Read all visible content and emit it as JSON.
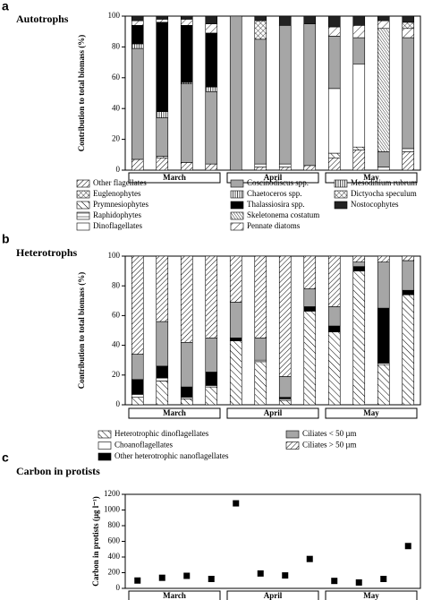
{
  "chart_data": [
    {
      "type": "bar",
      "stacked": true,
      "panel_label": "a",
      "title": "Autotrophs",
      "ylabel": "Contribution to total biomass (%)",
      "ylim": [
        0,
        100
      ],
      "yticks": [
        0,
        20,
        40,
        60,
        80,
        100
      ],
      "groups": [
        "March",
        "April",
        "May"
      ],
      "categories": [
        null,
        null,
        null,
        null,
        null,
        null,
        null,
        null,
        null,
        null,
        null,
        null
      ],
      "series": [
        {
          "name": "Other flagellates",
          "color": "#ffffff",
          "pattern": "diagonal",
          "values": [
            7,
            8,
            5,
            4,
            0,
            2,
            2,
            3,
            8,
            13,
            0,
            12
          ]
        },
        {
          "name": "Euglenophytes",
          "color": "#ffffff",
          "pattern": "crosshatch",
          "values": [
            0,
            0,
            0,
            0,
            0,
            0,
            0,
            0,
            0,
            0,
            0,
            0
          ]
        },
        {
          "name": "Prymnesiophytes",
          "color": "#ffffff",
          "pattern": "back-diagonal",
          "values": [
            0,
            1,
            0,
            0,
            0,
            0,
            0,
            0,
            3,
            2,
            0,
            0
          ]
        },
        {
          "name": "Raphidophytes",
          "color": "#ffffff",
          "pattern": "horizontal",
          "values": [
            0,
            0,
            0,
            0,
            0,
            0,
            0,
            0,
            0,
            0,
            0,
            0
          ]
        },
        {
          "name": "Dinoflagellates",
          "color": "#ffffff",
          "values": [
            0,
            0,
            0,
            0,
            0,
            2,
            2,
            0,
            42,
            54,
            2,
            2
          ]
        },
        {
          "name": "Coscinodiscus spp.",
          "color": "#a6a6a6",
          "values": [
            72,
            25,
            51,
            47,
            100,
            81,
            90,
            92,
            34,
            17,
            10,
            72
          ]
        },
        {
          "name": "Chaetoceros spp.",
          "color": "#ffffff",
          "pattern": "vertical",
          "values": [
            3,
            4,
            1,
            3,
            0,
            0,
            0,
            0,
            0,
            0,
            0,
            0
          ]
        },
        {
          "name": "Thalassiosira spp.",
          "color": "#000000",
          "values": [
            12,
            58,
            37,
            35,
            0,
            0,
            0,
            0,
            0,
            0,
            0,
            0
          ]
        },
        {
          "name": "Skeletonema costatum",
          "color": "#ffffff",
          "pattern": "dense-diagonal",
          "values": [
            0,
            0,
            0,
            0,
            0,
            0,
            0,
            0,
            0,
            0,
            80,
            0
          ]
        },
        {
          "name": "Pennate diatoms",
          "color": "#ffffff",
          "pattern": "sparse-diagonal",
          "values": [
            3,
            2,
            4,
            6,
            0,
            0,
            0,
            0,
            6,
            8,
            5,
            6
          ]
        },
        {
          "name": "Mesodinium rubrum",
          "color": "#ffffff",
          "pattern": "vertical",
          "values": [
            0,
            0,
            0,
            0,
            0,
            0,
            0,
            0,
            0,
            0,
            0,
            0
          ]
        },
        {
          "name": "Dictyocha speculum",
          "color": "#ffffff",
          "pattern": "crosshatch",
          "values": [
            0,
            0,
            0,
            0,
            0,
            12,
            0,
            0,
            0,
            0,
            0,
            4
          ]
        },
        {
          "name": "Nostocophytes",
          "color": "#222222",
          "values": [
            3,
            2,
            2,
            5,
            0,
            3,
            6,
            5,
            7,
            6,
            3,
            4
          ]
        }
      ]
    },
    {
      "type": "bar",
      "stacked": true,
      "panel_label": "b",
      "title": "Heterotrophs",
      "ylabel": "Contribution to total biomass (%)",
      "ylim": [
        0,
        100
      ],
      "yticks": [
        0,
        20,
        40,
        60,
        80,
        100
      ],
      "groups": [
        "March",
        "April",
        "May"
      ],
      "categories": [
        null,
        null,
        null,
        null,
        null,
        null,
        null,
        null,
        null,
        null,
        null,
        null
      ],
      "series": [
        {
          "name": "Heterotrophic dinoflagellates",
          "color": "#ffffff",
          "pattern": "back-diagonal",
          "values": [
            5,
            16,
            4,
            12,
            43,
            29,
            3,
            63,
            49,
            90,
            27,
            74
          ]
        },
        {
          "name": "Choanoflagellates",
          "color": "#ffffff",
          "values": [
            2,
            2,
            1,
            1,
            0,
            1,
            1,
            0,
            0,
            0,
            1,
            0
          ]
        },
        {
          "name": "Other heterotrophic nanoflagellates",
          "color": "#000000",
          "values": [
            10,
            8,
            7,
            9,
            2,
            0,
            1,
            3,
            4,
            3,
            37,
            3
          ]
        },
        {
          "name": "Ciliates < 50 µm",
          "color": "#a6a6a6",
          "values": [
            17,
            30,
            30,
            23,
            24,
            15,
            14,
            12,
            13,
            3,
            31,
            20
          ]
        },
        {
          "name": "Ciliates > 50 µm",
          "color": "#ffffff",
          "pattern": "diagonal",
          "values": [
            66,
            44,
            58,
            55,
            31,
            55,
            81,
            22,
            34,
            4,
            4,
            3
          ]
        }
      ]
    },
    {
      "type": "scatter",
      "panel_label": "c",
      "title": "Carbon in protists",
      "ylabel": "Carbon in protists (µg l⁻¹)",
      "ylim": [
        0,
        1200
      ],
      "yticks": [
        0,
        200,
        400,
        600,
        800,
        1000,
        1200
      ],
      "groups": [
        "March",
        "April",
        "May"
      ],
      "categories": [
        null,
        null,
        null,
        null,
        null,
        null,
        null,
        null,
        null,
        null,
        null,
        null
      ],
      "color": "#000000",
      "values": [
        100,
        135,
        160,
        120,
        1085,
        190,
        165,
        375,
        95,
        75,
        120,
        540
      ]
    }
  ]
}
